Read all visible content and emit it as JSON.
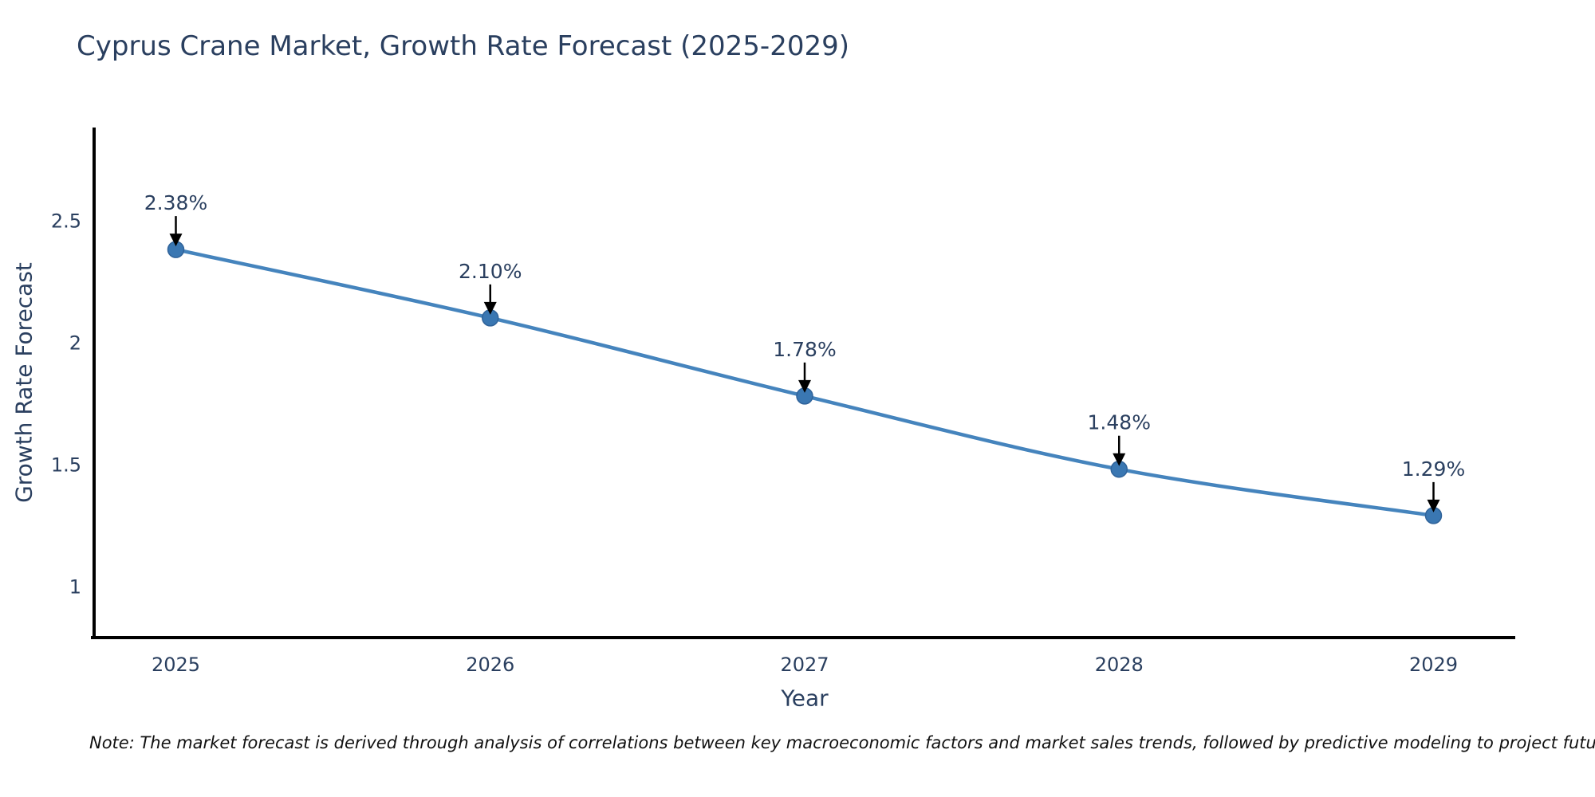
{
  "page": {
    "background": "#ffffff"
  },
  "note": {
    "text": "Note: The market forecast is derived through analysis of correlations between key macroeconomic factors and market sales trends, followed by predictive modeling to project future sales"
  },
  "chart_data": {
    "type": "line",
    "title": "Cyprus Crane Market, Growth Rate Forecast (2025-2029)",
    "xlabel": "Year",
    "ylabel": "Growth Rate Forecast",
    "x": [
      2025,
      2026,
      2027,
      2028,
      2029
    ],
    "xticks": [
      "2025",
      "2026",
      "2027",
      "2028",
      "2029"
    ],
    "yticks": [
      2.5,
      2,
      1.5,
      1
    ],
    "series": [
      {
        "name": "Growth Rate Forecast",
        "values": [
          2.38,
          2.1,
          1.78,
          1.48,
          1.29
        ]
      }
    ],
    "point_labels": [
      "2.38%",
      "2.10%",
      "1.78%",
      "1.48%",
      "1.29%"
    ],
    "xlim": [
      2024.74,
      2029.26
    ],
    "ylim": [
      0.79,
      2.88
    ],
    "grid": false,
    "legend": "none",
    "line_shape": "spline",
    "annotation_arrows": true,
    "colors": {
      "line": "#4584bd",
      "marker": "#3a77b2",
      "marker_edge": "#30639a",
      "axis": "#000000",
      "text": "#2a3f5f",
      "annotation": "#2a3f5f",
      "arrow": "#000000",
      "note_text": "#111111"
    }
  }
}
